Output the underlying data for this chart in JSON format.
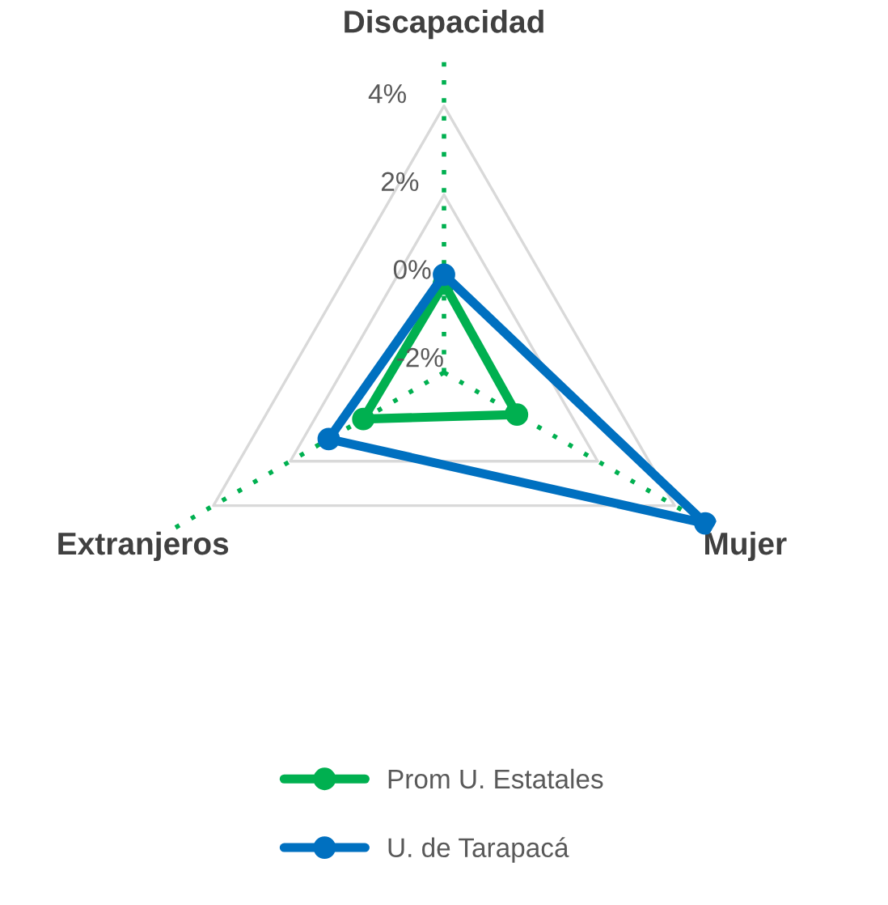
{
  "chart_data": {
    "type": "radar",
    "categories": [
      "Discapacidad",
      "Mujer",
      "Extranjeros"
    ],
    "series": [
      {
        "name": "Prom U. Estatales",
        "color": "#00b050",
        "values": [
          0.0,
          -0.1,
          0.1
        ]
      },
      {
        "name": "U. de Tarapacá",
        "color": "#0070c0",
        "values": [
          0.2,
          4.8,
          1.0
        ]
      }
    ],
    "ylim": [
      -2,
      5
    ],
    "yticks": [
      {
        "value": -2,
        "label": "-2%"
      },
      {
        "value": 0,
        "label": "0%"
      },
      {
        "value": 2,
        "label": "2%"
      },
      {
        "value": 4,
        "label": "4%"
      }
    ],
    "grid": true,
    "marker": "circle",
    "line_style": "solid",
    "legend": "bottom"
  }
}
